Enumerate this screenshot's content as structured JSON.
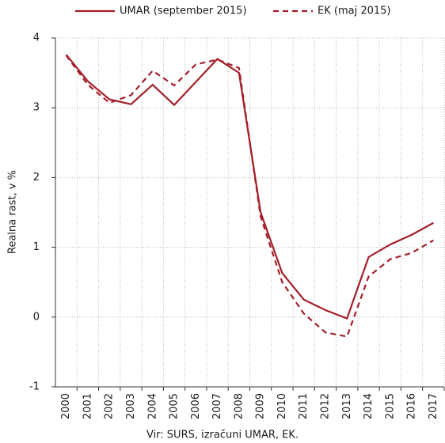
{
  "chart_data": {
    "type": "line",
    "y_label": "Realna rast, v %",
    "source": "Vir: SURS, izračuni UMAR, EK.",
    "categories": [
      "2000",
      "2001",
      "2002",
      "2003",
      "2004",
      "2005",
      "2006",
      "2007",
      "2008",
      "2009",
      "2010",
      "2011",
      "2012",
      "2013",
      "2014",
      "2015",
      "2016",
      "2017"
    ],
    "series": [
      {
        "name": "UMAR (september 2015)",
        "color": "#a31f2a",
        "dash": false,
        "values": [
          3.76,
          3.38,
          3.12,
          3.05,
          3.33,
          3.04,
          3.37,
          3.7,
          3.5,
          1.5,
          0.63,
          0.25,
          0.1,
          -0.02,
          0.86,
          1.04,
          1.18,
          1.35
        ]
      },
      {
        "name": "EK (maj 2015)",
        "color": "#a31f2a",
        "dash": true,
        "values": [
          3.75,
          3.33,
          3.07,
          3.18,
          3.53,
          3.32,
          3.62,
          3.69,
          3.57,
          1.44,
          0.5,
          0.05,
          -0.22,
          -0.28,
          0.58,
          0.83,
          0.92,
          1.1
        ]
      }
    ],
    "ylim": [
      -1,
      4
    ],
    "yticks": [
      -1,
      0,
      1,
      2,
      3,
      4
    ],
    "grid": true,
    "legend": "top"
  }
}
